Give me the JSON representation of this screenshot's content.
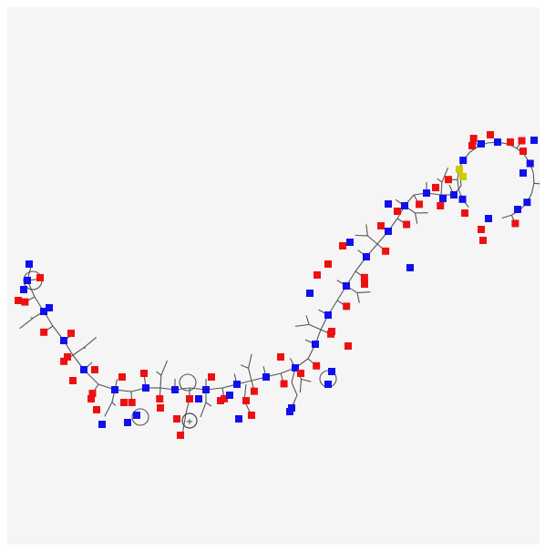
{
  "viewer": {
    "background": "#f5f5f5",
    "bond_color": "#555555"
  },
  "molecule": {
    "type": "peptide-structure-2d",
    "element_colors": {
      "N": "#1010ee",
      "O": "#ee1010",
      "S": "#cccc00",
      "C": "#555555"
    },
    "charge_marker": "+"
  }
}
